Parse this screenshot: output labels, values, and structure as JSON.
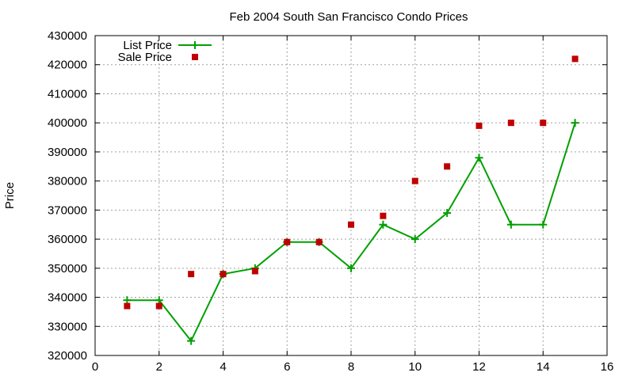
{
  "chart_data": {
    "type": "line",
    "title": "Feb 2004 South San Francisco Condo Prices",
    "xlabel": "",
    "ylabel": "Price",
    "xlim": [
      0,
      16
    ],
    "ylim": [
      320000,
      430000
    ],
    "x_ticks": [
      0,
      2,
      4,
      6,
      8,
      10,
      12,
      14,
      16
    ],
    "y_ticks": [
      320000,
      330000,
      340000,
      350000,
      360000,
      370000,
      380000,
      390000,
      400000,
      410000,
      420000,
      430000
    ],
    "grid": true,
    "legend_position": "top-left",
    "series": [
      {
        "name": "List Price",
        "style": "line+points",
        "marker": "plus",
        "color": "#00a000",
        "x": [
          1,
          2,
          3,
          4,
          5,
          6,
          7,
          8,
          9,
          10,
          11,
          12,
          13,
          14,
          15
        ],
        "y": [
          339000,
          339000,
          325000,
          348000,
          350000,
          359000,
          359000,
          350000,
          365000,
          360000,
          369000,
          388000,
          365000,
          365000,
          400000
        ]
      },
      {
        "name": "Sale Price",
        "style": "points",
        "marker": "square",
        "color": "#c00000",
        "x": [
          1,
          2,
          3,
          4,
          5,
          6,
          7,
          8,
          9,
          10,
          11,
          12,
          13,
          14,
          15
        ],
        "y": [
          337000,
          337000,
          348000,
          348000,
          349000,
          359000,
          359000,
          365000,
          368000,
          380000,
          385000,
          399000,
          400000,
          400000,
          422000
        ]
      }
    ]
  }
}
